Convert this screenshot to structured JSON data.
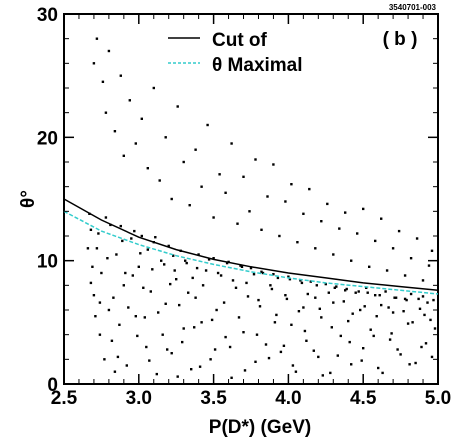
{
  "chart_data": {
    "type": "scatter",
    "figure_id": "3540701-003",
    "panel_label": "( b )",
    "xlabel": "P(D*) (GeV)",
    "ylabel": "θ°",
    "xlim": [
      2.5,
      5.0
    ],
    "ylim": [
      0,
      30
    ],
    "x_ticks": [
      "2.5",
      "3.0",
      "3.5",
      "4.0",
      "4.5",
      "5.0"
    ],
    "y_ticks": [
      "0",
      "10",
      "20",
      "30"
    ],
    "grid": false,
    "legend_position": "top-right",
    "legend": [
      {
        "label": "Cut of",
        "style": "solid",
        "color": "#000000"
      },
      {
        "label": "θ Maximal",
        "style": "dashed",
        "color": "#33cccc"
      }
    ],
    "series": [
      {
        "name": "Cut of",
        "type": "line",
        "color": "#000000",
        "x": [
          2.5,
          2.75,
          3.0,
          3.25,
          3.5,
          3.75,
          4.0,
          4.25,
          4.5,
          4.75,
          5.0
        ],
        "y": [
          15.0,
          13.3,
          11.9,
          10.9,
          10.1,
          9.5,
          9.0,
          8.6,
          8.2,
          7.9,
          7.6
        ]
      },
      {
        "name": "θ Maximal",
        "type": "line",
        "color": "#33cccc",
        "x": [
          2.5,
          2.75,
          3.0,
          3.25,
          3.5,
          3.75,
          4.0,
          4.25,
          4.5,
          4.75,
          5.0
        ],
        "y": [
          14.0,
          12.4,
          11.3,
          10.4,
          9.7,
          9.1,
          8.6,
          8.2,
          7.9,
          7.6,
          7.3
        ]
      },
      {
        "name": "",
        "type": "scatter",
        "color": "#000000",
        "points": [
          [
            2.68,
            12.5
          ],
          [
            2.72,
            11.0
          ],
          [
            2.75,
            9.0
          ],
          [
            2.78,
            13.5
          ],
          [
            2.8,
            6.0
          ],
          [
            2.82,
            3.5
          ],
          [
            2.85,
            10.5
          ],
          [
            2.88,
            12.8
          ],
          [
            2.9,
            8.0
          ],
          [
            2.92,
            1.5
          ],
          [
            2.95,
            11.8
          ],
          [
            2.98,
            5.5
          ],
          [
            3.0,
            9.5
          ],
          [
            3.02,
            12.0
          ],
          [
            3.05,
            3.0
          ],
          [
            3.08,
            7.5
          ],
          [
            3.1,
            11.5
          ],
          [
            3.12,
            0.8
          ],
          [
            3.15,
            10.0
          ],
          [
            3.18,
            6.5
          ],
          [
            3.2,
            11.2
          ],
          [
            3.22,
            2.5
          ],
          [
            3.25,
            8.5
          ],
          [
            3.28,
            10.8
          ],
          [
            3.3,
            4.5
          ],
          [
            3.32,
            9.8
          ],
          [
            3.35,
            1.2
          ],
          [
            3.38,
            7.0
          ],
          [
            3.4,
            10.5
          ],
          [
            3.42,
            5.0
          ],
          [
            3.45,
            9.2
          ],
          [
            3.48,
            2.0
          ],
          [
            3.5,
            10.2
          ],
          [
            3.52,
            6.0
          ],
          [
            3.55,
            8.8
          ],
          [
            3.58,
            3.8
          ],
          [
            3.6,
            9.9
          ],
          [
            3.62,
            0.5
          ],
          [
            3.65,
            7.8
          ],
          [
            3.68,
            9.6
          ],
          [
            3.7,
            4.2
          ],
          [
            3.72,
            8.2
          ],
          [
            3.75,
            9.4
          ],
          [
            3.78,
            1.8
          ],
          [
            3.8,
            6.8
          ],
          [
            3.82,
            9.1
          ],
          [
            3.85,
            3.2
          ],
          [
            3.88,
            8.0
          ],
          [
            3.9,
            8.9
          ],
          [
            3.92,
            5.6
          ],
          [
            3.95,
            2.6
          ],
          [
            3.98,
            7.2
          ],
          [
            4.0,
            8.7
          ],
          [
            4.02,
            4.8
          ],
          [
            4.05,
            1.0
          ],
          [
            4.08,
            8.4
          ],
          [
            4.1,
            6.2
          ],
          [
            4.12,
            3.5
          ],
          [
            4.15,
            8.3
          ],
          [
            4.18,
            7.0
          ],
          [
            4.2,
            2.2
          ],
          [
            4.22,
            5.4
          ],
          [
            4.25,
            8.1
          ],
          [
            4.28,
            0.9
          ],
          [
            4.3,
            6.6
          ],
          [
            4.32,
            7.9
          ],
          [
            4.35,
            3.9
          ],
          [
            4.38,
            7.6
          ],
          [
            4.4,
            5.1
          ],
          [
            4.42,
            1.6
          ],
          [
            4.45,
            7.4
          ],
          [
            4.48,
            6.0
          ],
          [
            4.5,
            2.9
          ],
          [
            4.52,
            7.8
          ],
          [
            4.55,
            4.4
          ],
          [
            4.58,
            7.2
          ],
          [
            4.6,
            1.3
          ],
          [
            4.62,
            6.4
          ],
          [
            4.65,
            7.5
          ],
          [
            4.68,
            3.6
          ],
          [
            4.7,
            5.8
          ],
          [
            4.72,
            7.0
          ],
          [
            4.75,
            2.4
          ],
          [
            4.78,
            6.9
          ],
          [
            4.8,
            4.9
          ],
          [
            4.82,
            7.3
          ],
          [
            4.85,
            1.7
          ],
          [
            4.88,
            6.1
          ],
          [
            4.9,
            7.1
          ],
          [
            4.92,
            3.3
          ],
          [
            4.95,
            5.2
          ],
          [
            4.97,
            6.8
          ],
          [
            2.7,
            7.2
          ],
          [
            2.74,
            4.0
          ],
          [
            2.86,
            2.2
          ],
          [
            2.96,
            8.8
          ],
          [
            3.06,
            10.9
          ],
          [
            3.16,
            4.0
          ],
          [
            3.26,
            0.6
          ],
          [
            3.36,
            8.6
          ],
          [
            2.7,
            26.0
          ],
          [
            2.72,
            28.0
          ],
          [
            2.76,
            24.5
          ],
          [
            2.78,
            22.0
          ],
          [
            2.8,
            27.0
          ],
          [
            2.84,
            20.5
          ],
          [
            2.88,
            25.0
          ],
          [
            2.9,
            18.5
          ],
          [
            2.94,
            23.0
          ],
          [
            2.98,
            19.5
          ],
          [
            3.02,
            21.5
          ],
          [
            3.06,
            17.5
          ],
          [
            3.1,
            24.0
          ],
          [
            3.14,
            16.5
          ],
          [
            3.18,
            20.0
          ],
          [
            3.22,
            15.0
          ],
          [
            3.26,
            22.5
          ],
          [
            3.3,
            18.0
          ],
          [
            3.34,
            14.5
          ],
          [
            3.38,
            19.0
          ],
          [
            3.42,
            16.0
          ],
          [
            3.46,
            21.0
          ],
          [
            3.5,
            13.5
          ],
          [
            3.54,
            17.0
          ],
          [
            3.58,
            15.5
          ],
          [
            3.62,
            19.5
          ],
          [
            3.66,
            13.0
          ],
          [
            3.7,
            16.8
          ],
          [
            3.74,
            14.0
          ],
          [
            3.78,
            18.2
          ],
          [
            3.82,
            12.5
          ],
          [
            3.86,
            15.2
          ],
          [
            3.9,
            17.8
          ],
          [
            3.94,
            12.0
          ],
          [
            3.98,
            14.8
          ],
          [
            4.02,
            16.2
          ],
          [
            4.06,
            11.5
          ],
          [
            4.1,
            13.8
          ],
          [
            4.14,
            15.8
          ],
          [
            4.18,
            11.0
          ],
          [
            4.22,
            13.2
          ],
          [
            4.26,
            14.6
          ],
          [
            4.3,
            10.5
          ],
          [
            4.34,
            12.6
          ],
          [
            4.38,
            13.9
          ],
          [
            4.42,
            10.0
          ],
          [
            4.46,
            12.2
          ],
          [
            4.5,
            14.2
          ],
          [
            4.54,
            9.5
          ],
          [
            4.58,
            11.6
          ],
          [
            4.62,
            13.4
          ],
          [
            4.66,
            9.2
          ],
          [
            4.7,
            11.0
          ],
          [
            4.74,
            12.4
          ],
          [
            4.78,
            8.8
          ],
          [
            4.82,
            10.2
          ],
          [
            4.86,
            11.8
          ],
          [
            4.9,
            8.4
          ],
          [
            4.94,
            9.6
          ],
          [
            4.96,
            10.8
          ],
          [
            2.66,
            11.0
          ],
          [
            2.67,
            13.8
          ],
          [
            2.69,
            9.5
          ],
          [
            2.71,
            5.5
          ],
          [
            2.73,
            12.2
          ],
          [
            2.77,
            2.0
          ],
          [
            2.79,
            10.2
          ],
          [
            2.81,
            12.9
          ],
          [
            2.83,
            7.0
          ],
          [
            2.87,
            4.8
          ],
          [
            2.89,
            11.6
          ],
          [
            2.91,
            9.0
          ],
          [
            2.93,
            6.2
          ],
          [
            2.97,
            12.4
          ],
          [
            2.99,
            3.9
          ],
          [
            3.01,
            10.6
          ],
          [
            3.03,
            7.8
          ],
          [
            3.07,
            1.9
          ],
          [
            3.09,
            9.3
          ],
          [
            3.11,
            11.9
          ],
          [
            3.13,
            5.8
          ],
          [
            3.17,
            9.7
          ],
          [
            3.19,
            2.8
          ],
          [
            3.21,
            8.1
          ],
          [
            3.23,
            10.4
          ],
          [
            3.27,
            6.4
          ],
          [
            3.29,
            3.4
          ],
          [
            3.31,
            10.0
          ],
          [
            3.33,
            7.4
          ],
          [
            3.37,
            4.6
          ],
          [
            3.39,
            9.4
          ],
          [
            3.41,
            1.4
          ],
          [
            3.43,
            8.0
          ],
          [
            3.47,
            10.1
          ],
          [
            3.49,
            5.2
          ],
          [
            3.51,
            2.8
          ],
          [
            3.53,
            9.0
          ],
          [
            3.57,
            6.6
          ],
          [
            3.59,
            9.8
          ],
          [
            3.61,
            3.0
          ],
          [
            3.63,
            8.4
          ],
          [
            3.67,
            5.4
          ],
          [
            3.69,
            9.5
          ],
          [
            3.71,
            1.1
          ],
          [
            3.73,
            7.1
          ],
          [
            3.77,
            8.9
          ],
          [
            3.79,
            4.0
          ],
          [
            3.81,
            6.3
          ],
          [
            3.83,
            9.0
          ],
          [
            3.87,
            2.1
          ],
          [
            3.89,
            7.7
          ],
          [
            3.91,
            5.0
          ],
          [
            3.93,
            8.6
          ],
          [
            3.97,
            3.1
          ],
          [
            3.99,
            6.9
          ],
          [
            4.01,
            8.5
          ],
          [
            4.03,
            1.5
          ],
          [
            4.07,
            5.9
          ],
          [
            4.09,
            8.2
          ],
          [
            4.11,
            4.3
          ],
          [
            4.13,
            7.3
          ],
          [
            4.17,
            2.7
          ],
          [
            4.19,
            8.0
          ],
          [
            4.21,
            6.1
          ],
          [
            4.23,
            0.7
          ],
          [
            4.27,
            7.4
          ],
          [
            4.29,
            4.6
          ],
          [
            4.31,
            7.8
          ],
          [
            4.33,
            2.3
          ],
          [
            4.37,
            6.7
          ],
          [
            4.39,
            7.7
          ],
          [
            4.41,
            3.4
          ],
          [
            4.43,
            5.7
          ],
          [
            4.47,
            7.5
          ],
          [
            4.49,
            1.9
          ],
          [
            4.51,
            6.3
          ],
          [
            4.53,
            7.4
          ],
          [
            4.57,
            3.9
          ],
          [
            4.59,
            5.5
          ],
          [
            4.61,
            7.2
          ],
          [
            4.63,
            0.9
          ],
          [
            4.67,
            6.2
          ],
          [
            4.69,
            4.1
          ],
          [
            4.71,
            7.0
          ],
          [
            4.73,
            2.8
          ],
          [
            4.77,
            5.9
          ],
          [
            4.79,
            6.8
          ],
          [
            4.81,
            1.6
          ],
          [
            4.83,
            5.0
          ],
          [
            4.87,
            6.9
          ],
          [
            4.89,
            3.0
          ],
          [
            4.91,
            5.6
          ],
          [
            4.93,
            6.6
          ],
          [
            4.96,
            2.2
          ],
          [
            4.98,
            4.5
          ],
          [
            2.68,
            8.2
          ],
          [
            2.74,
            6.6
          ],
          [
            2.84,
            1.0
          ],
          [
            3.04,
            5.4
          ],
          [
            3.24,
            9.2
          ]
        ]
      }
    ]
  }
}
